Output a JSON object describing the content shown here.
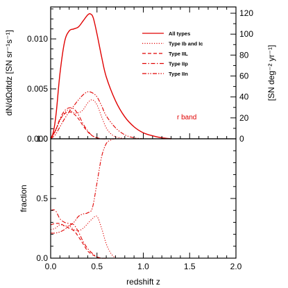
{
  "colors": {
    "series": "#e00000",
    "axes": "#000000"
  },
  "chart_data": [
    {
      "type": "line",
      "panel": "top",
      "xlim": [
        0,
        2.0
      ],
      "ylim": [
        0,
        0.0132
      ],
      "ylabel": "dN/dΩdtdz  [SN sr⁻¹s⁻¹]",
      "y_ticks": [
        "0.000",
        "0.005",
        "0.010"
      ],
      "y_tick_values": [
        0,
        0.005,
        0.01
      ],
      "right_axis": {
        "label": "[SN deg⁻² yr⁻¹]",
        "ylim": [
          0,
          126
        ],
        "ticks": [
          "0",
          "20",
          "40",
          "60",
          "80",
          "100",
          "120"
        ],
        "tick_values": [
          0,
          20,
          40,
          60,
          80,
          100,
          120
        ]
      },
      "annotation": "r band",
      "legend_position": "top-right",
      "series": [
        {
          "name": "All types",
          "style": "solid",
          "x": [
            0,
            0.03,
            0.06,
            0.1,
            0.15,
            0.2,
            0.25,
            0.3,
            0.35,
            0.4,
            0.43,
            0.46,
            0.5,
            0.55,
            0.6,
            0.7,
            0.8,
            0.9,
            1.0,
            1.1,
            1.2,
            1.3
          ],
          "y": [
            0,
            0.0007,
            0.0026,
            0.0065,
            0.0097,
            0.0108,
            0.011,
            0.0112,
            0.0118,
            0.0124,
            0.0125,
            0.0121,
            0.0105,
            0.0082,
            0.0062,
            0.0038,
            0.0022,
            0.0012,
            0.0006,
            0.0003,
            0.0001,
            0.0
          ]
        },
        {
          "name": "Type Ib and Ic",
          "style": "dotted",
          "x": [
            0,
            0.05,
            0.1,
            0.15,
            0.2,
            0.25,
            0.3,
            0.35,
            0.4,
            0.45,
            0.5,
            0.55,
            0.6,
            0.65,
            0.7,
            0.75,
            0.8
          ],
          "y": [
            0,
            0.0007,
            0.0018,
            0.0026,
            0.0029,
            0.0026,
            0.0026,
            0.0029,
            0.0036,
            0.0039,
            0.0034,
            0.0022,
            0.0011,
            0.0005,
            0.0002,
            0.0001,
            0.0
          ]
        },
        {
          "name": "Type IIL",
          "style": "dashed",
          "x": [
            0,
            0.05,
            0.1,
            0.15,
            0.2,
            0.25,
            0.3,
            0.35,
            0.4,
            0.45,
            0.5,
            0.55,
            0.6,
            0.65
          ],
          "y": [
            0,
            0.0008,
            0.0019,
            0.0025,
            0.0027,
            0.0025,
            0.002,
            0.0013,
            0.0007,
            0.0003,
            0.0001,
            0.0,
            0.0,
            0.0
          ]
        },
        {
          "name": "Type IIp",
          "style": "dashdot",
          "x": [
            0,
            0.05,
            0.1,
            0.15,
            0.2,
            0.25,
            0.3,
            0.35,
            0.4,
            0.45,
            0.5,
            0.55,
            0.6,
            0.65
          ],
          "y": [
            0,
            0.0008,
            0.002,
            0.0028,
            0.0031,
            0.003,
            0.0024,
            0.0015,
            0.0008,
            0.0003,
            0.0001,
            0.0,
            0.0,
            0.0
          ]
        },
        {
          "name": "Type IIn",
          "style": "dashdotdot",
          "x": [
            0,
            0.05,
            0.1,
            0.15,
            0.2,
            0.25,
            0.3,
            0.35,
            0.4,
            0.45,
            0.5,
            0.55,
            0.6,
            0.7,
            0.8,
            0.9,
            1.0
          ],
          "y": [
            0,
            0.0004,
            0.0012,
            0.002,
            0.0027,
            0.0033,
            0.0039,
            0.0044,
            0.0047,
            0.0046,
            0.0042,
            0.0033,
            0.0023,
            0.0011,
            0.0004,
            0.0001,
            0.0
          ]
        }
      ]
    },
    {
      "type": "line",
      "panel": "bottom",
      "xlim": [
        0,
        2.0
      ],
      "ylim": [
        0,
        1.0
      ],
      "xlabel": "redshift z",
      "ylabel": "fraction",
      "x_ticks": [
        "0.0",
        "0.5",
        "1.0",
        "1.5",
        "2.0"
      ],
      "x_tick_values": [
        0,
        0.5,
        1.0,
        1.5,
        2.0
      ],
      "y_ticks": [
        "0.0",
        "0.5",
        "1.0"
      ],
      "y_tick_values": [
        0,
        0.5,
        1.0
      ],
      "series": [
        {
          "style": "dotted",
          "x": [
            0,
            0.05,
            0.1,
            0.15,
            0.2,
            0.25,
            0.3,
            0.35,
            0.4,
            0.45,
            0.5,
            0.55,
            0.6,
            0.65,
            0.7
          ],
          "y": [
            0.24,
            0.25,
            0.28,
            0.27,
            0.27,
            0.24,
            0.23,
            0.25,
            0.29,
            0.33,
            0.35,
            0.25,
            0.12,
            0.04,
            0.0
          ]
        },
        {
          "style": "dashed",
          "x": [
            0,
            0.05,
            0.1,
            0.15,
            0.2,
            0.25,
            0.3,
            0.35,
            0.4,
            0.45,
            0.5,
            0.55,
            0.6
          ],
          "y": [
            0.28,
            0.29,
            0.29,
            0.27,
            0.25,
            0.23,
            0.18,
            0.12,
            0.06,
            0.03,
            0.01,
            0.0,
            0.0
          ]
        },
        {
          "style": "dashdot",
          "x": [
            0,
            0.05,
            0.1,
            0.15,
            0.2,
            0.25,
            0.3,
            0.35,
            0.4,
            0.45,
            0.5,
            0.55,
            0.6
          ],
          "y": [
            0.4,
            0.4,
            0.33,
            0.3,
            0.29,
            0.28,
            0.22,
            0.14,
            0.08,
            0.04,
            0.01,
            0.0,
            0.0
          ]
        },
        {
          "style": "dashdotdot",
          "x": [
            0,
            0.05,
            0.1,
            0.15,
            0.2,
            0.25,
            0.3,
            0.35,
            0.4,
            0.45,
            0.5,
            0.55,
            0.6,
            0.65,
            0.7,
            0.8,
            1.0,
            1.2,
            1.4,
            1.6,
            1.8,
            2.0
          ],
          "y": [
            0.21,
            0.21,
            0.22,
            0.24,
            0.27,
            0.3,
            0.35,
            0.37,
            0.38,
            0.42,
            0.63,
            0.85,
            0.96,
            0.99,
            1.0,
            1.0,
            1.0,
            1.0,
            1.0,
            1.0,
            1.0,
            1.0
          ]
        }
      ]
    }
  ]
}
